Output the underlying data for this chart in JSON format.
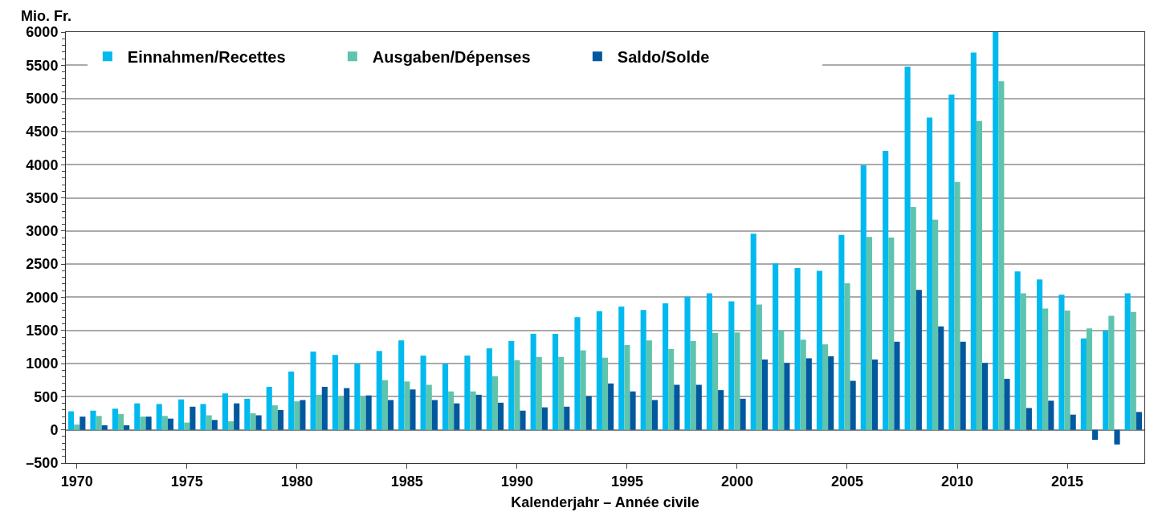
{
  "chart_data": {
    "type": "bar",
    "ylabel": "Mio. Fr.",
    "xlabel": "Kalenderjahr – Année civile",
    "categories": [
      "1970",
      null,
      null,
      null,
      null,
      "1975",
      null,
      null,
      null,
      null,
      "1980",
      null,
      null,
      null,
      null,
      "1985",
      null,
      null,
      null,
      null,
      "1990",
      null,
      null,
      null,
      null,
      "1995",
      null,
      null,
      null,
      null,
      "2000",
      null,
      null,
      null,
      null,
      "2005",
      null,
      null,
      null,
      null,
      "2010",
      null,
      null,
      null,
      null,
      "2015",
      null,
      null,
      null
    ],
    "series": [
      {
        "name": "Einnahmen/Recettes",
        "color": "#00b9ef",
        "values": [
          280,
          290,
          320,
          400,
          390,
          460,
          390,
          550,
          470,
          650,
          880,
          1180,
          1130,
          1000,
          1190,
          1350,
          1120,
          1000,
          1120,
          1230,
          1340,
          1450,
          1450,
          1700,
          1790,
          1860,
          1810,
          1910,
          2010,
          2060,
          1940,
          2960,
          2510,
          2440,
          2400,
          2940,
          3990,
          4210,
          5480,
          4710,
          5060,
          5690,
          6000,
          2390,
          2270,
          2040,
          1380,
          1500,
          2060
        ]
      },
      {
        "name": "Ausgaben/Dépenses",
        "color": "#5ec4ad",
        "values": [
          80,
          210,
          240,
          200,
          210,
          110,
          220,
          130,
          250,
          370,
          430,
          530,
          500,
          500,
          750,
          730,
          680,
          580,
          580,
          810,
          1050,
          1100,
          1100,
          1200,
          1090,
          1280,
          1350,
          1220,
          1340,
          1460,
          1470,
          1890,
          1500,
          1360,
          1290,
          2210,
          2910,
          2900,
          3360,
          3170,
          3740,
          4660,
          5260,
          2060,
          1830,
          1800,
          1530,
          1720,
          1780
        ]
      },
      {
        "name": "Saldo/Solde",
        "color": "#00589f",
        "values": [
          200,
          70,
          70,
          200,
          170,
          350,
          150,
          400,
          220,
          300,
          450,
          650,
          630,
          520,
          450,
          610,
          450,
          400,
          530,
          410,
          290,
          340,
          350,
          510,
          700,
          580,
          450,
          680,
          680,
          600,
          470,
          1060,
          1010,
          1080,
          1110,
          740,
          1060,
          1330,
          2110,
          1560,
          1330,
          1010,
          770,
          330,
          440,
          230,
          -150,
          -220,
          270
        ]
      }
    ],
    "ylim": [
      -500,
      6000
    ],
    "yticks": [
      {
        "value": -500,
        "label": "–500"
      },
      0,
      500,
      1000,
      1500,
      2000,
      2500,
      3000,
      3500,
      4000,
      4500,
      5000,
      5500,
      6000
    ],
    "grid": "y",
    "legend": "top left"
  }
}
